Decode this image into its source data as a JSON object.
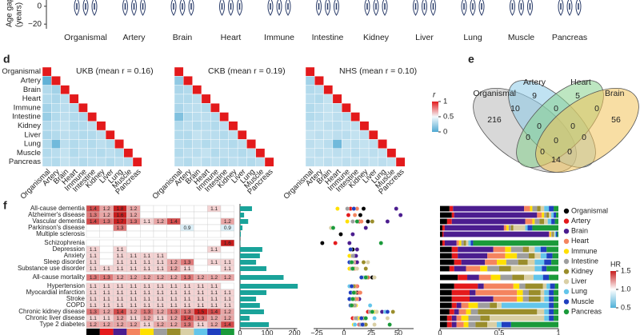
{
  "violin": {
    "ylabel": [
      "Age gap",
      "(years)"
    ],
    "ylim": [
      -27,
      7
    ],
    "yticks": [
      0,
      {
        "value": -20,
        "label": "−20"
      }
    ],
    "categories": [
      "Organismal",
      "Artery",
      "Brain",
      "Heart",
      "Immune",
      "Intestine",
      "Kidney",
      "Liver",
      "Lung",
      "Muscle",
      "Pancreas"
    ]
  },
  "correlation": {
    "label": "d",
    "organs": [
      "Organismal",
      "Artery",
      "Brain",
      "Heart",
      "Immune",
      "Intestine",
      "Kidney",
      "Liver",
      "Lung",
      "Muscle",
      "Pancreas"
    ],
    "matrices": [
      {
        "title": "UKB (mean r = 0.16)",
        "rows": [
          [
            1
          ],
          [
            0.05,
            1
          ],
          [
            0.3,
            0.25,
            1
          ],
          [
            0.3,
            0.28,
            0.32,
            1
          ],
          [
            0.25,
            0.3,
            0.32,
            0.3,
            1
          ],
          [
            0.22,
            0.3,
            0.33,
            0.3,
            0.28,
            1
          ],
          [
            0.3,
            0.32,
            0.35,
            0.3,
            0.3,
            0.33,
            1
          ],
          [
            0.28,
            0.3,
            0.33,
            0.32,
            0.3,
            0.3,
            0.33,
            1
          ],
          [
            0.3,
            0.1,
            0.33,
            0.3,
            0.32,
            0.3,
            0.33,
            0.3,
            1
          ],
          [
            0.3,
            0.32,
            0.35,
            0.3,
            0.33,
            0.32,
            0.3,
            0.33,
            0.3,
            1
          ],
          [
            0.32,
            0.3,
            0.35,
            0.33,
            0.3,
            0.32,
            0.33,
            0.3,
            0.33,
            0.32,
            1
          ]
        ]
      },
      {
        "title": "CKB (mean r = 0.19)",
        "rows": [
          [
            1
          ],
          [
            0.2,
            1
          ],
          [
            0.28,
            0.3,
            1
          ],
          [
            0.3,
            0.3,
            0.33,
            1
          ],
          [
            0.28,
            0.32,
            0.33,
            0.3,
            1
          ],
          [
            0.15,
            0.3,
            0.32,
            0.33,
            0.3,
            1
          ],
          [
            0.3,
            0.33,
            0.3,
            0.32,
            0.3,
            0.33,
            1
          ],
          [
            0.3,
            0.3,
            0.35,
            0.33,
            0.32,
            0.3,
            0.33,
            1
          ],
          [
            0.32,
            0.3,
            0.33,
            0.3,
            0.33,
            0.32,
            0.3,
            0.33,
            1
          ],
          [
            0.3,
            0.33,
            0.32,
            0.35,
            0.3,
            0.33,
            0.32,
            0.3,
            0.33,
            1
          ],
          [
            0.33,
            0.3,
            0.35,
            0.32,
            0.33,
            0.3,
            0.33,
            0.32,
            0.3,
            0.33,
            1
          ]
        ]
      },
      {
        "title": "NHS (mean r = 0.10)",
        "rows": [
          [
            1
          ],
          [
            0.25,
            1
          ],
          [
            0.3,
            0.32,
            1
          ],
          [
            0.32,
            0.3,
            0.35,
            1
          ],
          [
            0.3,
            0.33,
            0.35,
            0.33,
            1
          ],
          [
            0.3,
            0.32,
            0.35,
            0.33,
            0.3,
            1
          ],
          [
            0.33,
            0.35,
            0.33,
            0.32,
            0.35,
            0.33,
            1
          ],
          [
            0.35,
            0.33,
            0.35,
            0.33,
            0.32,
            0.35,
            0.33,
            1
          ],
          [
            0.33,
            0.35,
            0.32,
            0.1,
            0.35,
            0.33,
            0.35,
            0.33,
            1
          ],
          [
            0.35,
            0.33,
            0.35,
            0.33,
            0.35,
            0.32,
            0.35,
            0.33,
            0.35,
            1
          ],
          [
            0.33,
            0.35,
            0.33,
            0.35,
            0.33,
            0.35,
            0.33,
            0.35,
            0.33,
            0.35,
            1
          ]
        ]
      }
    ],
    "colorbar": {
      "title": "r",
      "ticks": [
        0,
        0.5,
        1
      ]
    }
  },
  "venn": {
    "label": "e",
    "sets": [
      "Organismal",
      "Artery",
      "Heart",
      "Brain"
    ],
    "regions": [
      216,
      9,
      5,
      56,
      10,
      0,
      0,
      0,
      0,
      0,
      0,
      0,
      14,
      0,
      0
    ]
  },
  "associations": {
    "label": "f",
    "disease_groups": [
      [
        "All-cause dementia",
        "Alzheimer's disease",
        "Vascular dementia",
        "Parkinson's disease",
        "Multiple sclerosis"
      ],
      [
        "Schizophrenia",
        "Depression",
        "Anxiety",
        "Sleep disorder",
        "Substance use disorder"
      ],
      [
        "All-cause mortality"
      ],
      [
        "Hypertension",
        "Myocardial infarction",
        "Stroke",
        "COPD",
        "Chronic kidney disease",
        "Chronic liver disease",
        "Type 2 diabetes"
      ]
    ],
    "organs": [
      "Organismal",
      "Artery",
      "Brain",
      "Heart",
      "Immune",
      "Intestine",
      "Kidney",
      "Liver",
      "Lung",
      "Muscle",
      "Pancreas"
    ],
    "colors": [
      "#000000",
      "#e41a1c",
      "#4b1d8f",
      "#f4845f",
      "#ffe000",
      "#9e9e9e",
      "#9a8d2b",
      "#d9cfa5",
      "#63c5ea",
      "#1f3fbf",
      "#1a9a3a"
    ],
    "hr": [
      [
        1.4,
        1.2,
        1.8,
        1.2,
        null,
        null,
        null,
        null,
        null,
        1.1,
        null
      ],
      [
        1.3,
        1.2,
        1.6,
        1.2,
        null,
        null,
        null,
        null,
        null,
        null,
        null
      ],
      [
        1.4,
        1.3,
        1.7,
        1.3,
        1.1,
        1.2,
        1.4,
        null,
        null,
        null,
        1.2
      ],
      [
        null,
        null,
        1.3,
        null,
        null,
        null,
        null,
        0.9,
        null,
        null,
        0.9
      ],
      [
        null,
        null,
        null,
        null,
        null,
        null,
        null,
        null,
        null,
        null,
        null
      ],
      [
        null,
        null,
        null,
        null,
        null,
        null,
        null,
        null,
        null,
        null,
        1.6
      ],
      [
        1.1,
        null,
        1.1,
        null,
        null,
        null,
        null,
        null,
        null,
        1.1,
        null
      ],
      [
        1.1,
        null,
        1.1,
        1.1,
        1.1,
        1.1,
        null,
        null,
        null,
        null,
        null
      ],
      [
        1.1,
        null,
        1.1,
        1.1,
        1.1,
        1.1,
        1.2,
        1.3,
        null,
        1.1,
        1.1
      ],
      [
        1.1,
        1.1,
        1.1,
        1.1,
        1.1,
        1.1,
        1.2,
        1.1,
        null,
        null,
        1.1
      ],
      [
        1.3,
        1.3,
        1.2,
        1.2,
        1.2,
        1.2,
        1.2,
        1.3,
        1.2,
        1.2,
        1.2
      ],
      [
        1.1,
        1.1,
        1.1,
        1.1,
        1.1,
        1.1,
        1.1,
        1.1,
        1.1,
        1.1,
        null
      ],
      [
        1.1,
        1.1,
        1.1,
        1.1,
        1.1,
        1.1,
        1.1,
        1.1,
        1.1,
        1.1,
        1.1
      ],
      [
        1.1,
        1.1,
        1.1,
        1.1,
        1.1,
        1.1,
        1.1,
        1.1,
        1.1,
        1.1,
        1.1
      ],
      [
        1.1,
        1.1,
        1.1,
        1.1,
        1.1,
        1.1,
        1.1,
        1.1,
        1.1,
        1.1,
        1.1
      ],
      [
        1.3,
        1.2,
        1.4,
        1.2,
        1.3,
        1.2,
        1.3,
        1.3,
        1.5,
        1.4,
        1.2
      ],
      [
        1.1,
        1.1,
        1.2,
        1.1,
        1.2,
        1.1,
        1.2,
        1.4,
        1.3,
        1.2,
        1.2
      ],
      [
        1.2,
        1.2,
        1.2,
        1.2,
        1.1,
        1.2,
        1.2,
        1.3,
        1.1,
        1.2,
        1.4
      ]
    ],
    "hr_colorbar": {
      "title": "HR",
      "ticks": [
        0.5,
        {
          "value": 1,
          "label": "1.0"
        },
        1.5
      ]
    },
    "bars": {
      "values": [
        44,
        15,
        30,
        9,
        3,
        1,
        82,
        73,
        59,
        97,
        160,
        212,
        97,
        59,
        73,
        88,
        35,
        106
      ],
      "xlim": [
        0,
        210
      ],
      "xticks": [
        0,
        100,
        200
      ]
    },
    "dots": {
      "xlim": [
        -28,
        64
      ],
      "xticks": [
        {
          "value": -25,
          "label": "−25"
        },
        0,
        25,
        50
      ],
      "values": [
        [
          18,
          6,
          48,
          12,
          -6,
          3,
          null,
          null,
          null,
          9,
          null
        ],
        [
          15,
          4,
          52,
          10,
          null,
          null,
          null,
          null,
          null,
          null,
          null
        ],
        [
          22,
          14,
          40,
          16,
          3,
          8,
          26,
          null,
          null,
          null,
          12
        ],
        [
          null,
          null,
          20,
          null,
          null,
          null,
          null,
          -12,
          null,
          null,
          -10
        ],
        [
          -3,
          null,
          8,
          null,
          null,
          null,
          null,
          null,
          null,
          null,
          null
        ],
        [
          -20,
          -8,
          5,
          null,
          null,
          null,
          null,
          null,
          null,
          null,
          34
        ],
        [
          8,
          null,
          12,
          null,
          null,
          null,
          null,
          null,
          null,
          6,
          null
        ],
        [
          9,
          null,
          11,
          7,
          5,
          8,
          null,
          null,
          null,
          null,
          null
        ],
        [
          10,
          null,
          12,
          9,
          6,
          8,
          18,
          22,
          null,
          5,
          7
        ],
        [
          9,
          6,
          8,
          10,
          5,
          7,
          20,
          12,
          null,
          null,
          8
        ],
        [
          26,
          22,
          18,
          20,
          17,
          19,
          21,
          28,
          19,
          16,
          20
        ],
        [
          10,
          12,
          8,
          11,
          6,
          7,
          9,
          6,
          5,
          7,
          null
        ],
        [
          12,
          14,
          8,
          15,
          7,
          9,
          10,
          8,
          7,
          6,
          9
        ],
        [
          11,
          13,
          14,
          12,
          6,
          8,
          9,
          7,
          6,
          5,
          8
        ],
        [
          10,
          8,
          6,
          9,
          11,
          10,
          8,
          7,
          24,
          6,
          7
        ],
        [
          30,
          22,
          35,
          25,
          28,
          24,
          45,
          30,
          38,
          40,
          26
        ],
        [
          12,
          8,
          16,
          10,
          14,
          11,
          18,
          40,
          28,
          16,
          20
        ],
        [
          18,
          14,
          16,
          17,
          9,
          15,
          20,
          28,
          10,
          17,
          42
        ]
      ]
    },
    "proportions": {
      "xlim": [
        0,
        1
      ],
      "xticks": [
        0,
        0.5,
        1
      ],
      "values": [
        [
          0.08,
          0.03,
          0.6,
          0.05,
          0.02,
          0.04,
          0.03,
          0.03,
          0.04,
          0.04,
          0.04
        ],
        [
          0.1,
          0.02,
          0.7,
          0.04,
          0.02,
          0.02,
          0.02,
          0.02,
          0.02,
          0.02,
          0.02
        ],
        [
          0.06,
          0.04,
          0.62,
          0.06,
          0.02,
          0.04,
          0.04,
          0.03,
          0.03,
          0.03,
          0.03
        ],
        [
          0.02,
          0.02,
          0.5,
          0.02,
          0.02,
          0.02,
          0.02,
          0.1,
          0.02,
          0.04,
          0.22
        ],
        [
          0.02,
          0.01,
          0.89,
          0.01,
          0.01,
          0.01,
          0.01,
          0.01,
          0.01,
          0.01,
          0.01
        ],
        [
          0.02,
          0.02,
          0.1,
          0.02,
          0.02,
          0.02,
          0.02,
          0.02,
          0.02,
          0.02,
          0.72
        ],
        [
          0.1,
          0.05,
          0.3,
          0.1,
          0.05,
          0.1,
          0.05,
          0.05,
          0.05,
          0.05,
          0.1
        ],
        [
          0.1,
          0.05,
          0.25,
          0.15,
          0.1,
          0.1,
          0.05,
          0.05,
          0.05,
          0.05,
          0.05
        ],
        [
          0.12,
          0.06,
          0.2,
          0.1,
          0.08,
          0.1,
          0.08,
          0.06,
          0.08,
          0.06,
          0.06
        ],
        [
          0.08,
          0.04,
          0.1,
          0.12,
          0.06,
          0.1,
          0.1,
          0.2,
          0.06,
          0.04,
          0.1
        ],
        [
          0.15,
          0.08,
          0.1,
          0.1,
          0.08,
          0.1,
          0.1,
          0.08,
          0.08,
          0.05,
          0.08
        ],
        [
          0.12,
          0.2,
          0.05,
          0.25,
          0.05,
          0.05,
          0.15,
          0.03,
          0.03,
          0.04,
          0.03
        ],
        [
          0.1,
          0.15,
          0.05,
          0.35,
          0.05,
          0.05,
          0.1,
          0.03,
          0.04,
          0.04,
          0.04
        ],
        [
          0.1,
          0.15,
          0.2,
          0.2,
          0.05,
          0.05,
          0.1,
          0.03,
          0.04,
          0.04,
          0.04
        ],
        [
          0.1,
          0.04,
          0.04,
          0.06,
          0.08,
          0.1,
          0.06,
          0.04,
          0.4,
          0.04,
          0.04
        ],
        [
          0.08,
          0.04,
          0.04,
          0.06,
          0.04,
          0.06,
          0.5,
          0.06,
          0.04,
          0.04,
          0.04
        ],
        [
          0.06,
          0.04,
          0.04,
          0.04,
          0.06,
          0.1,
          0.08,
          0.46,
          0.04,
          0.04,
          0.04
        ],
        [
          0.06,
          0.04,
          0.04,
          0.06,
          0.04,
          0.06,
          0.1,
          0.08,
          0.04,
          0.08,
          0.4
        ]
      ]
    }
  }
}
